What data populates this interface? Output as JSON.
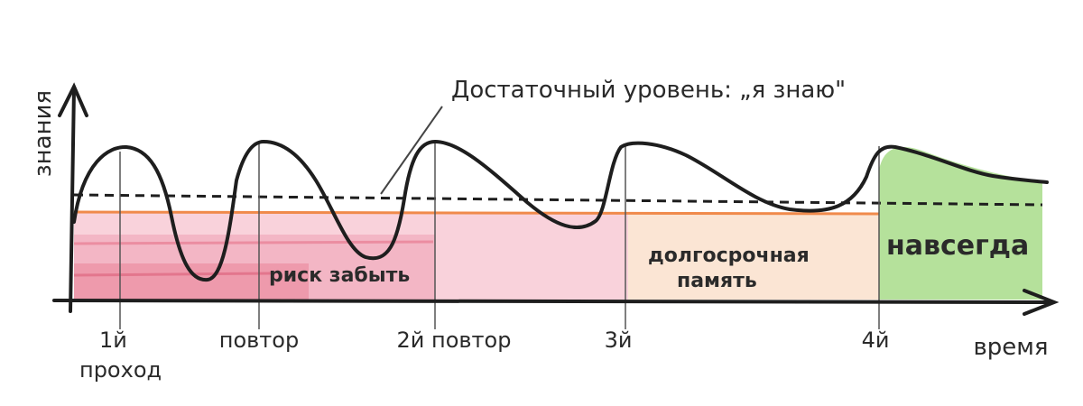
{
  "diagram": {
    "y_axis_label": "знания",
    "x_axis_label": "время",
    "threshold_label": "Достаточный уровень: „я знаю\"",
    "zones": {
      "forget": "риск забыть",
      "longterm_line1": "долгосрочная",
      "longterm_line2": "память",
      "forever": "навсегда"
    },
    "ticks": {
      "t1_line1": "1й",
      "t1_line2": "проход",
      "t2": "повтор",
      "t3": "2й повтор",
      "t4": "3й",
      "t5": "4й"
    },
    "colors": {
      "curve": "#1e1e1e",
      "forget_zone": "#f2a3b8",
      "longterm_zone": "#fbe2cf",
      "forever_zone": "#a8dc8a",
      "orange_line": "#f08a4b"
    }
  }
}
